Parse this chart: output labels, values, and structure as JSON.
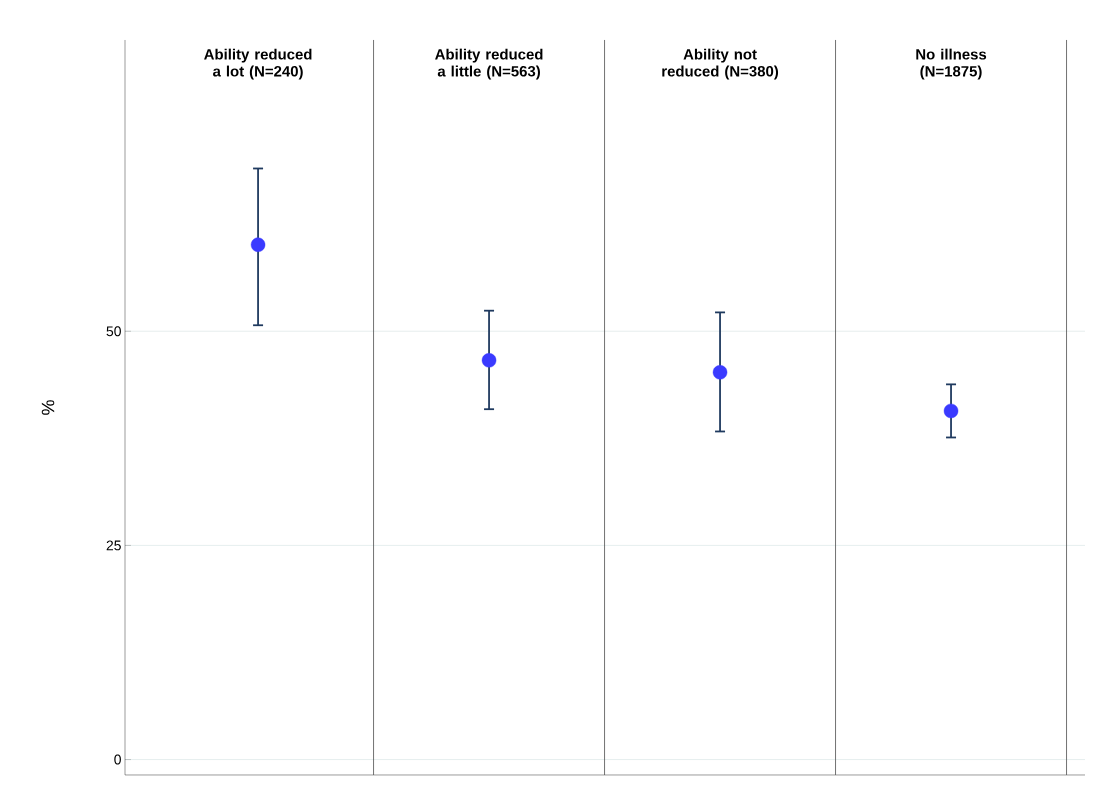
{
  "chart_data": {
    "type": "scatter",
    "ylabel": "%",
    "categories": [
      "Ability reduced a lot (N=240)",
      "Ability reduced a little (N=563)",
      "Ability not reduced (N=380)",
      "No illness (N=1875)"
    ],
    "values": [
      60.1,
      46.6,
      45.2,
      40.7
    ],
    "errors": [
      [
        50.7,
        69.0
      ],
      [
        40.9,
        52.4
      ],
      [
        38.3,
        52.2
      ],
      [
        37.6,
        43.8
      ]
    ],
    "color": "#3a3aff",
    "grid": "y",
    "ylim": [
      -1.8,
      84
    ],
    "yticks": [
      0,
      25,
      50
    ]
  }
}
